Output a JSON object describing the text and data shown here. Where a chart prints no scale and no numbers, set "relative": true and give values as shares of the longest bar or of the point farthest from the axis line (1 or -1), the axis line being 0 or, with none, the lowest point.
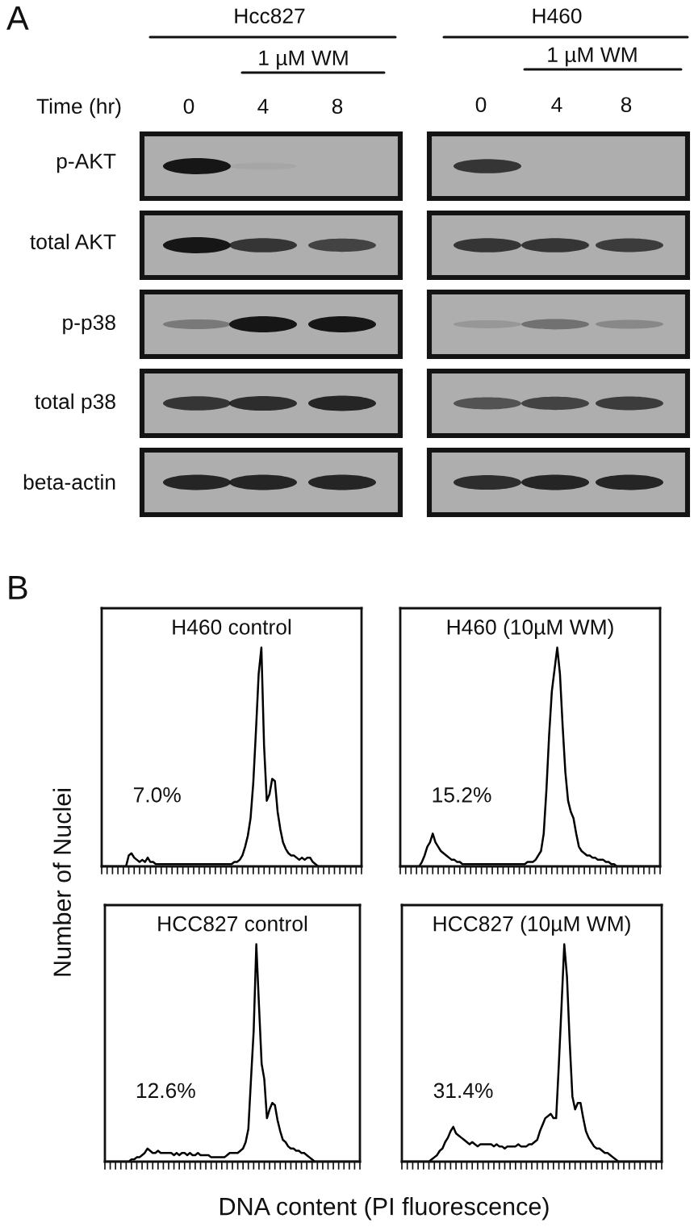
{
  "chart_data": [
    {
      "type": "other",
      "annotations": [
        "A",
        "Hcc827",
        "1 µM WM",
        "H460",
        "1 µM WM",
        "Time (hr)",
        "0",
        "4",
        "8",
        "0",
        "4",
        "8",
        "p-AKT",
        "total AKT",
        "p-p38",
        "total p38",
        "beta-actin",
        "B"
      ]
    },
    {
      "type": "line",
      "title": "H460 control",
      "relative": true,
      "categories": [
        null,
        null,
        null,
        null,
        null,
        null,
        null,
        null,
        null,
        null,
        null,
        null,
        null,
        null,
        null,
        null,
        null,
        null,
        null,
        null,
        null,
        null,
        null,
        null,
        null,
        null,
        null,
        null,
        null,
        null,
        null,
        null,
        null,
        null,
        null,
        null,
        null,
        null,
        null,
        null,
        null,
        null,
        null,
        null,
        null,
        null,
        null,
        null,
        null,
        null,
        null,
        null,
        null,
        null,
        null,
        null,
        null,
        null,
        null,
        null,
        null,
        null,
        null,
        null,
        null,
        null,
        null,
        null,
        null,
        null,
        null,
        null,
        null,
        null,
        null,
        null,
        null,
        null,
        null,
        null,
        null,
        null,
        null,
        null,
        null,
        null,
        null,
        null,
        null,
        null,
        null,
        null,
        null,
        null,
        null,
        null,
        null
      ],
      "values": [
        0,
        0,
        0,
        0,
        0,
        0,
        0,
        0,
        0,
        0,
        0.05,
        0.06,
        0.04,
        0.03,
        0.02,
        0.03,
        0.02,
        0.04,
        0.02,
        0.02,
        0.01,
        0.01,
        0.01,
        0.01,
        0.01,
        0.01,
        0.01,
        0.01,
        0.01,
        0.01,
        0.01,
        0.01,
        0.01,
        0.01,
        0.01,
        0.01,
        0.01,
        0.01,
        0.01,
        0.01,
        0.01,
        0.01,
        0.01,
        0.01,
        0.01,
        0.01,
        0.01,
        0.01,
        0.01,
        0.02,
        0.02,
        0.03,
        0.05,
        0.09,
        0.14,
        0.22,
        0.38,
        0.62,
        0.88,
        1.0,
        0.55,
        0.3,
        0.33,
        0.4,
        0.39,
        0.25,
        0.17,
        0.11,
        0.08,
        0.06,
        0.05,
        0.05,
        0.04,
        0.03,
        0.04,
        0.03,
        0.04,
        0.04,
        0.02,
        0.01,
        0,
        0,
        0,
        0,
        0,
        0,
        0,
        0,
        0,
        0,
        0,
        0,
        0,
        0,
        0,
        0,
        0
      ],
      "color": "#000000",
      "annotations": [
        "7.0%"
      ]
    },
    {
      "type": "line",
      "title": "H460 (10µM WM)",
      "relative": true,
      "categories": [
        null,
        null,
        null,
        null,
        null,
        null,
        null,
        null,
        null,
        null,
        null,
        null,
        null,
        null,
        null,
        null,
        null,
        null,
        null,
        null,
        null,
        null,
        null,
        null,
        null,
        null,
        null,
        null,
        null,
        null,
        null,
        null,
        null,
        null,
        null,
        null,
        null,
        null,
        null,
        null,
        null,
        null,
        null,
        null,
        null,
        null,
        null,
        null,
        null,
        null,
        null,
        null,
        null,
        null,
        null,
        null,
        null,
        null,
        null,
        null,
        null,
        null,
        null,
        null,
        null,
        null,
        null,
        null,
        null,
        null,
        null,
        null,
        null,
        null,
        null,
        null,
        null,
        null,
        null,
        null,
        null,
        null,
        null,
        null,
        null,
        null,
        null,
        null,
        null,
        null,
        null,
        null,
        null,
        null,
        null,
        null,
        null
      ],
      "values": [
        0,
        0,
        0,
        0,
        0,
        0,
        0,
        0,
        0.02,
        0.05,
        0.09,
        0.11,
        0.15,
        0.11,
        0.09,
        0.07,
        0.06,
        0.05,
        0.04,
        0.03,
        0.03,
        0.02,
        0.02,
        0.01,
        0.01,
        0.01,
        0.01,
        0.01,
        0.01,
        0.01,
        0.01,
        0.01,
        0.01,
        0.01,
        0.01,
        0.01,
        0.01,
        0.01,
        0.01,
        0.01,
        0.01,
        0.01,
        0.01,
        0.01,
        0.01,
        0.01,
        0.01,
        0.02,
        0.02,
        0.02,
        0.03,
        0.05,
        0.07,
        0.15,
        0.35,
        0.6,
        0.8,
        0.9,
        1.0,
        0.88,
        0.64,
        0.43,
        0.3,
        0.25,
        0.22,
        0.15,
        0.09,
        0.07,
        0.06,
        0.05,
        0.05,
        0.04,
        0.04,
        0.03,
        0.03,
        0.03,
        0.02,
        0.02,
        0.01,
        0.01,
        0,
        0,
        0,
        0,
        0,
        0,
        0,
        0,
        0,
        0,
        0,
        0,
        0,
        0,
        0,
        0,
        0
      ],
      "color": "#000000",
      "annotations": [
        "15.2%"
      ]
    },
    {
      "type": "line",
      "title": "HCC827 control",
      "relative": true,
      "xlabel": "DNA content (PI fluorescence)",
      "ylabel": "Number of Nuclei",
      "categories": [
        null,
        null,
        null,
        null,
        null,
        null,
        null,
        null,
        null,
        null,
        null,
        null,
        null,
        null,
        null,
        null,
        null,
        null,
        null,
        null,
        null,
        null,
        null,
        null,
        null,
        null,
        null,
        null,
        null,
        null,
        null,
        null,
        null,
        null,
        null,
        null,
        null,
        null,
        null,
        null,
        null,
        null,
        null,
        null,
        null,
        null,
        null,
        null,
        null,
        null,
        null,
        null,
        null,
        null,
        null,
        null,
        null,
        null,
        null,
        null,
        null,
        null,
        null,
        null,
        null,
        null,
        null,
        null,
        null,
        null,
        null,
        null,
        null,
        null,
        null,
        null,
        null,
        null,
        null,
        null,
        null,
        null,
        null,
        null,
        null,
        null,
        null,
        null,
        null,
        null,
        null,
        null,
        null,
        null,
        null,
        null,
        null
      ],
      "values": [
        0,
        0,
        0,
        0,
        0,
        0,
        0,
        0,
        0,
        0,
        0.01,
        0.01,
        0.02,
        0.02,
        0.03,
        0.04,
        0.06,
        0.05,
        0.04,
        0.04,
        0.05,
        0.04,
        0.04,
        0.04,
        0.04,
        0.04,
        0.03,
        0.04,
        0.03,
        0.04,
        0.04,
        0.03,
        0.04,
        0.03,
        0.03,
        0.04,
        0.03,
        0.03,
        0.03,
        0.03,
        0.02,
        0.02,
        0.02,
        0.02,
        0.02,
        0.02,
        0.03,
        0.04,
        0.04,
        0.04,
        0.04,
        0.05,
        0.06,
        0.09,
        0.15,
        0.38,
        0.6,
        1.0,
        0.72,
        0.45,
        0.38,
        0.2,
        0.24,
        0.27,
        0.26,
        0.19,
        0.14,
        0.1,
        0.09,
        0.07,
        0.06,
        0.06,
        0.05,
        0.05,
        0.04,
        0.04,
        0.03,
        0.02,
        0.01,
        0,
        0,
        0,
        0,
        0,
        0,
        0,
        0,
        0,
        0,
        0,
        0,
        0,
        0,
        0,
        0,
        0,
        0
      ],
      "color": "#000000",
      "annotations": [
        "12.6%"
      ]
    },
    {
      "type": "line",
      "title": "HCC827 (10µM WM)",
      "relative": true,
      "categories": [
        null,
        null,
        null,
        null,
        null,
        null,
        null,
        null,
        null,
        null,
        null,
        null,
        null,
        null,
        null,
        null,
        null,
        null,
        null,
        null,
        null,
        null,
        null,
        null,
        null,
        null,
        null,
        null,
        null,
        null,
        null,
        null,
        null,
        null,
        null,
        null,
        null,
        null,
        null,
        null,
        null,
        null,
        null,
        null,
        null,
        null,
        null,
        null,
        null,
        null,
        null,
        null,
        null,
        null,
        null,
        null,
        null,
        null,
        null,
        null,
        null,
        null,
        null,
        null,
        null,
        null,
        null,
        null,
        null,
        null,
        null,
        null,
        null,
        null,
        null,
        null,
        null,
        null,
        null,
        null,
        null,
        null,
        null,
        null,
        null,
        null,
        null,
        null,
        null,
        null,
        null,
        null,
        null,
        null,
        null,
        null,
        null
      ],
      "values": [
        0,
        0,
        0,
        0,
        0,
        0,
        0,
        0,
        0,
        0,
        0,
        0.01,
        0.02,
        0.03,
        0.05,
        0.06,
        0.09,
        0.11,
        0.14,
        0.16,
        0.13,
        0.12,
        0.11,
        0.1,
        0.09,
        0.08,
        0.09,
        0.08,
        0.07,
        0.08,
        0.08,
        0.08,
        0.08,
        0.08,
        0.07,
        0.08,
        0.07,
        0.07,
        0.06,
        0.07,
        0.07,
        0.07,
        0.07,
        0.08,
        0.07,
        0.07,
        0.07,
        0.08,
        0.08,
        0.09,
        0.1,
        0.14,
        0.17,
        0.2,
        0.21,
        0.22,
        0.2,
        0.2,
        0.45,
        0.72,
        1.0,
        0.85,
        0.55,
        0.3,
        0.24,
        0.27,
        0.27,
        0.2,
        0.14,
        0.11,
        0.09,
        0.07,
        0.06,
        0.06,
        0.05,
        0.04,
        0.04,
        0.03,
        0.02,
        0.01,
        0,
        0,
        0,
        0,
        0,
        0,
        0,
        0,
        0,
        0,
        0,
        0,
        0,
        0,
        0,
        0,
        0
      ],
      "color": "#000000",
      "annotations": [
        "31.4%"
      ]
    }
  ]
}
